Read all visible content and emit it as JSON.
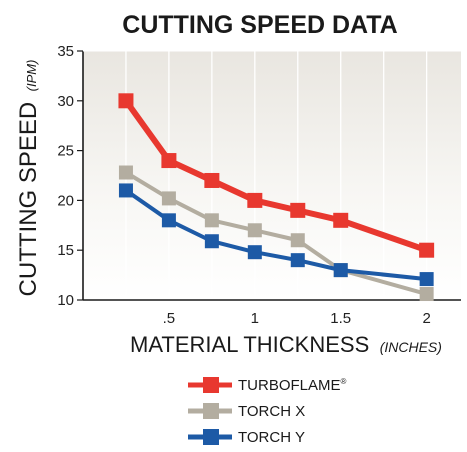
{
  "chart_data": {
    "type": "line",
    "title": "CUTTING SPEED DATA",
    "ylabel": "CUTTING SPEED",
    "ylabel_unit": "(IPM)",
    "xlabel": "MATERIAL THICKNESS",
    "xlabel_unit": "(INCHES)",
    "xlim": [
      0,
      2.2
    ],
    "ylim": [
      10,
      35
    ],
    "x_ticks": [
      0.5,
      1,
      1.5,
      2
    ],
    "x_tick_labels": [
      ".5",
      "1",
      "1.5",
      "2"
    ],
    "y_ticks": [
      10,
      15,
      20,
      25,
      30,
      35
    ],
    "grid": "vertical",
    "legend_position": "bottom",
    "x": [
      0.25,
      0.5,
      0.75,
      1.0,
      1.25,
      1.5,
      2.0
    ],
    "series": [
      {
        "name": "TURBOFLAME",
        "name_suffix": "®",
        "color": "#e8382f",
        "values": [
          30,
          24,
          22,
          20,
          19,
          18,
          15
        ]
      },
      {
        "name": "TORCH X",
        "color": "#b3ada0",
        "values": [
          22.8,
          20.2,
          18,
          17,
          16,
          13,
          10.6
        ]
      },
      {
        "name": "TORCH Y",
        "color": "#1d5aa6",
        "values": [
          21,
          18,
          15.9,
          14.8,
          14,
          13,
          12.1
        ]
      }
    ]
  }
}
